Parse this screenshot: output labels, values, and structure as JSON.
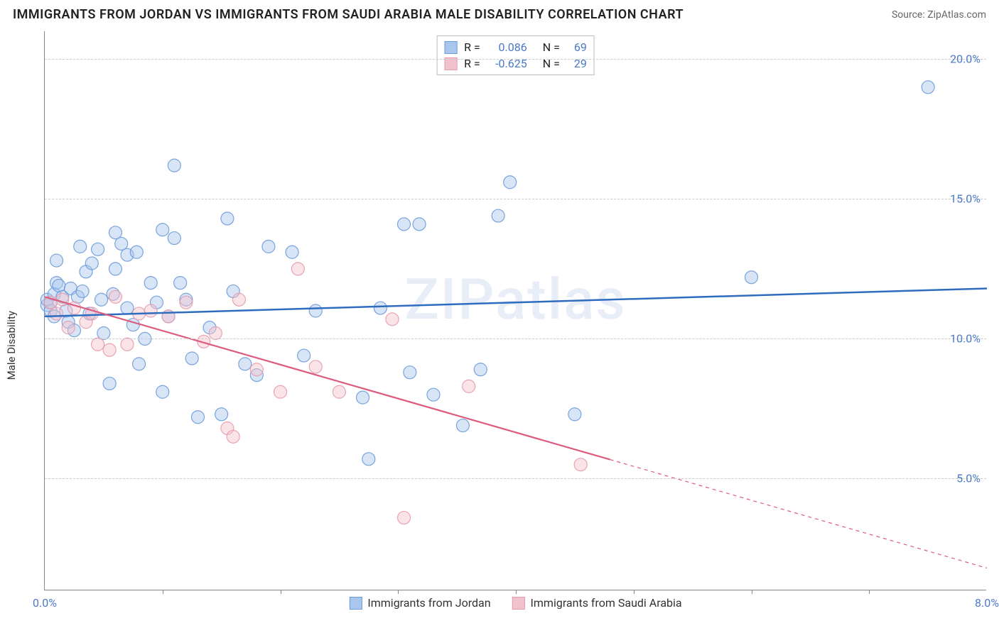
{
  "header": {
    "title": "IMMIGRANTS FROM JORDAN VS IMMIGRANTS FROM SAUDI ARABIA MALE DISABILITY CORRELATION CHART",
    "source": "Source: ZipAtlas.com"
  },
  "watermark": "ZIPatlas",
  "chart": {
    "type": "scatter",
    "y_axis_label": "Male Disability",
    "xlim": [
      0,
      8
    ],
    "ylim": [
      1,
      21
    ],
    "x_ticks_labeled": [
      {
        "v": 0.0,
        "label": "0.0%"
      },
      {
        "v": 8.0,
        "label": "8.0%"
      }
    ],
    "x_ticks_minor": [
      1,
      2,
      3,
      4,
      5,
      6,
      7
    ],
    "y_ticks": [
      {
        "v": 5.0,
        "label": "5.0%"
      },
      {
        "v": 10.0,
        "label": "10.0%"
      },
      {
        "v": 15.0,
        "label": "15.0%"
      },
      {
        "v": 20.0,
        "label": "20.0%"
      }
    ],
    "marker_radius": 9,
    "background_color": "#ffffff",
    "grid_color": "#cccccc",
    "axis_color": "#888888",
    "tick_label_color": "#4a7ac7",
    "series": [
      {
        "name": "Immigrants from Jordan",
        "color_fill": "#a9c6ed",
        "color_stroke": "#6b9bd8",
        "R": "0.086",
        "N": "69",
        "trend": {
          "x1": 0.0,
          "y1": 10.8,
          "x2": 8.0,
          "y2": 11.8,
          "color": "#2f6cc0",
          "width": 2.5,
          "dash_after_x": null
        },
        "points": [
          [
            0.02,
            11.2
          ],
          [
            0.02,
            11.4
          ],
          [
            0.05,
            11.0
          ],
          [
            0.05,
            11.3
          ],
          [
            0.08,
            11.6
          ],
          [
            0.08,
            10.8
          ],
          [
            0.1,
            12.8
          ],
          [
            0.1,
            12.0
          ],
          [
            0.12,
            11.9
          ],
          [
            0.15,
            11.5
          ],
          [
            0.18,
            11.0
          ],
          [
            0.2,
            10.6
          ],
          [
            0.22,
            11.8
          ],
          [
            0.25,
            10.3
          ],
          [
            0.28,
            11.5
          ],
          [
            0.3,
            13.3
          ],
          [
            0.32,
            11.7
          ],
          [
            0.35,
            12.4
          ],
          [
            0.38,
            10.9
          ],
          [
            0.4,
            12.7
          ],
          [
            0.45,
            13.2
          ],
          [
            0.48,
            11.4
          ],
          [
            0.5,
            10.2
          ],
          [
            0.55,
            8.4
          ],
          [
            0.58,
            11.6
          ],
          [
            0.6,
            13.8
          ],
          [
            0.6,
            12.5
          ],
          [
            0.65,
            13.4
          ],
          [
            0.7,
            11.1
          ],
          [
            0.7,
            13.0
          ],
          [
            0.75,
            10.5
          ],
          [
            0.78,
            13.1
          ],
          [
            0.8,
            9.1
          ],
          [
            0.85,
            10.0
          ],
          [
            0.9,
            12.0
          ],
          [
            0.95,
            11.3
          ],
          [
            1.0,
            13.9
          ],
          [
            1.0,
            8.1
          ],
          [
            1.05,
            10.8
          ],
          [
            1.1,
            16.2
          ],
          [
            1.1,
            13.6
          ],
          [
            1.15,
            12.0
          ],
          [
            1.2,
            11.4
          ],
          [
            1.25,
            9.3
          ],
          [
            1.3,
            7.2
          ],
          [
            1.4,
            10.4
          ],
          [
            1.5,
            7.3
          ],
          [
            1.55,
            14.3
          ],
          [
            1.6,
            11.7
          ],
          [
            1.7,
            9.1
          ],
          [
            1.8,
            8.7
          ],
          [
            1.9,
            13.3
          ],
          [
            2.1,
            13.1
          ],
          [
            2.2,
            9.4
          ],
          [
            2.3,
            11.0
          ],
          [
            2.7,
            7.9
          ],
          [
            2.75,
            5.7
          ],
          [
            2.85,
            11.1
          ],
          [
            3.05,
            14.1
          ],
          [
            3.1,
            8.8
          ],
          [
            3.18,
            14.1
          ],
          [
            3.3,
            8.0
          ],
          [
            3.55,
            6.9
          ],
          [
            3.7,
            8.9
          ],
          [
            3.85,
            14.4
          ],
          [
            3.95,
            15.6
          ],
          [
            4.5,
            7.3
          ],
          [
            6.0,
            12.2
          ],
          [
            7.5,
            19.0
          ]
        ]
      },
      {
        "name": "Immigrants from Saudi Arabia",
        "color_fill": "#f3c3cd",
        "color_stroke": "#e59aad",
        "R": "-0.625",
        "N": "29",
        "trend": {
          "x1": 0.0,
          "y1": 11.5,
          "x2": 8.0,
          "y2": 1.8,
          "color": "#dd5b7d",
          "width": 2.2,
          "dash_after_x": 4.8
        },
        "points": [
          [
            0.05,
            11.3
          ],
          [
            0.1,
            10.9
          ],
          [
            0.15,
            11.4
          ],
          [
            0.2,
            10.4
          ],
          [
            0.25,
            11.1
          ],
          [
            0.35,
            10.6
          ],
          [
            0.4,
            10.9
          ],
          [
            0.45,
            9.8
          ],
          [
            0.55,
            9.6
          ],
          [
            0.6,
            11.5
          ],
          [
            0.7,
            9.8
          ],
          [
            0.8,
            10.9
          ],
          [
            0.9,
            11.0
          ],
          [
            1.05,
            10.8
          ],
          [
            1.2,
            11.3
          ],
          [
            1.35,
            9.9
          ],
          [
            1.45,
            10.2
          ],
          [
            1.55,
            6.8
          ],
          [
            1.6,
            6.5
          ],
          [
            1.65,
            11.4
          ],
          [
            1.8,
            8.9
          ],
          [
            2.0,
            8.1
          ],
          [
            2.15,
            12.5
          ],
          [
            2.3,
            9.0
          ],
          [
            2.5,
            8.1
          ],
          [
            2.95,
            10.7
          ],
          [
            3.05,
            3.6
          ],
          [
            3.6,
            8.3
          ],
          [
            4.55,
            5.5
          ]
        ]
      }
    ],
    "legend": {
      "stats_labels": {
        "r": "R =",
        "n": "N ="
      }
    }
  }
}
